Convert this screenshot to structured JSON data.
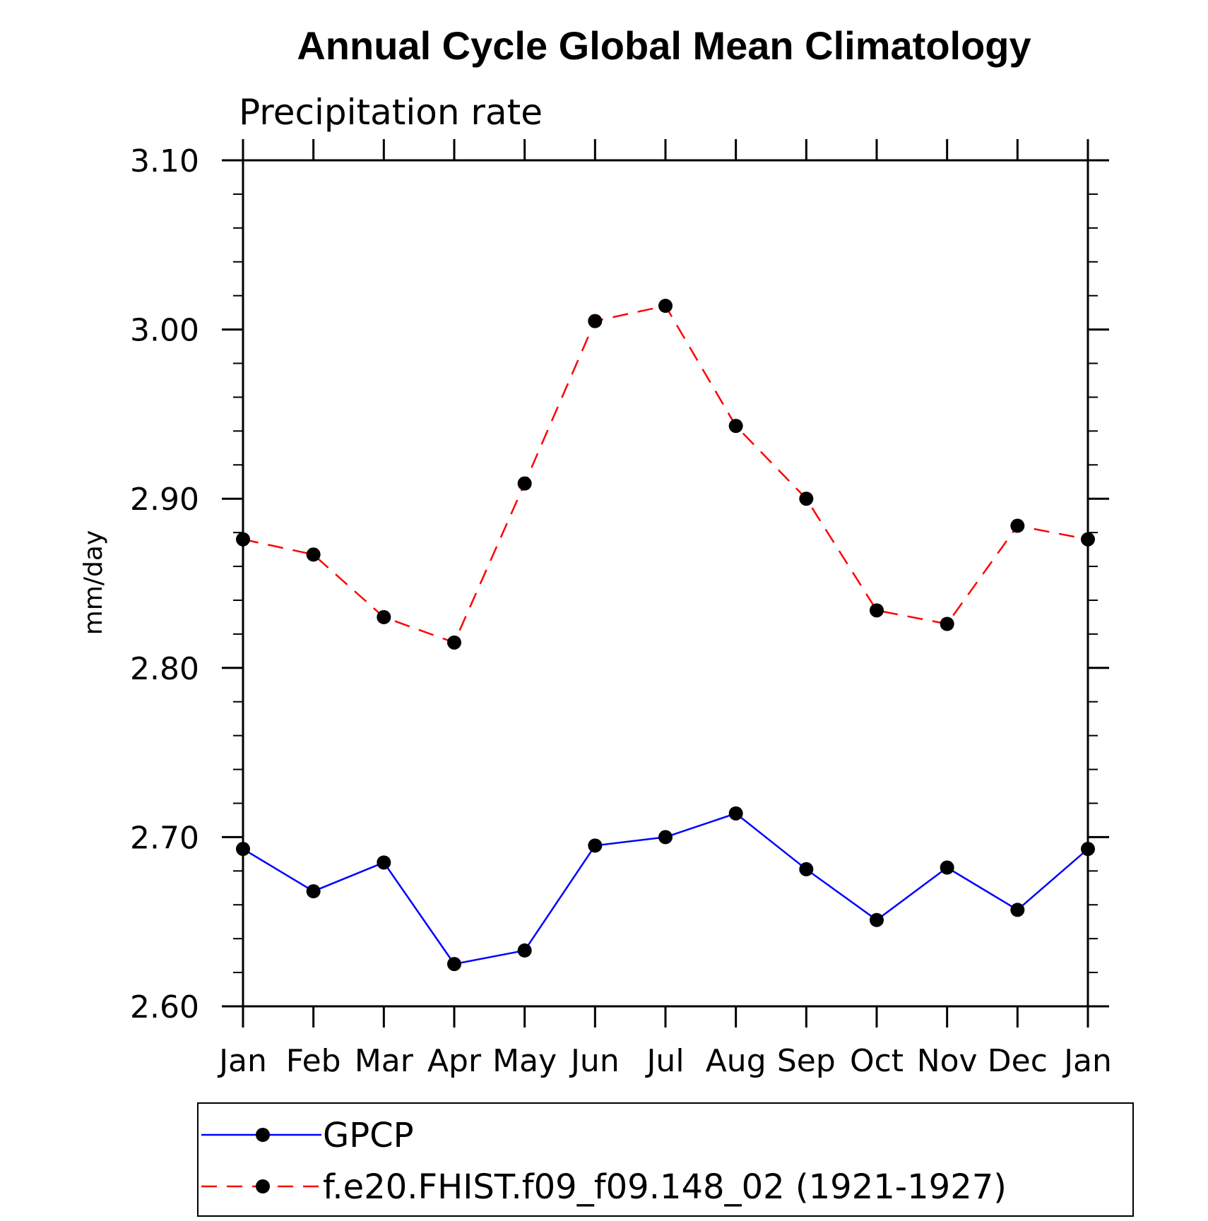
{
  "chart_data": {
    "type": "line",
    "title": "Annual Cycle Global Mean Climatology",
    "subtitle": "Precipitation rate",
    "ylabel": "mm/day",
    "xlabel": "",
    "categories": [
      "Jan",
      "Feb",
      "Mar",
      "Apr",
      "May",
      "Jun",
      "Jul",
      "Aug",
      "Sep",
      "Oct",
      "Nov",
      "Dec",
      "Jan"
    ],
    "ylim": [
      2.6,
      3.1
    ],
    "y_major_ticks": [
      2.6,
      2.7,
      2.8,
      2.9,
      3.0,
      3.1
    ],
    "y_tick_labels": [
      "2.60",
      "2.70",
      "2.80",
      "2.90",
      "3.00",
      "3.10"
    ],
    "y_minor_step": 0.02,
    "grid": false,
    "legend_position": "bottom",
    "series": [
      {
        "name": "GPCP",
        "color": "#0000ff",
        "dash": "solid",
        "marker": "filled-circle",
        "values": [
          2.693,
          2.668,
          2.685,
          2.625,
          2.633,
          2.695,
          2.7,
          2.714,
          2.681,
          2.651,
          2.682,
          2.657,
          2.693
        ]
      },
      {
        "name": "f.e20.FHIST.f09_f09.148_02 (1921-1927)",
        "color": "#ff0000",
        "dash": "dashed",
        "marker": "filled-circle",
        "values": [
          2.876,
          2.867,
          2.83,
          2.815,
          2.909,
          3.005,
          3.014,
          2.943,
          2.9,
          2.834,
          2.826,
          2.884,
          2.876
        ]
      }
    ]
  }
}
